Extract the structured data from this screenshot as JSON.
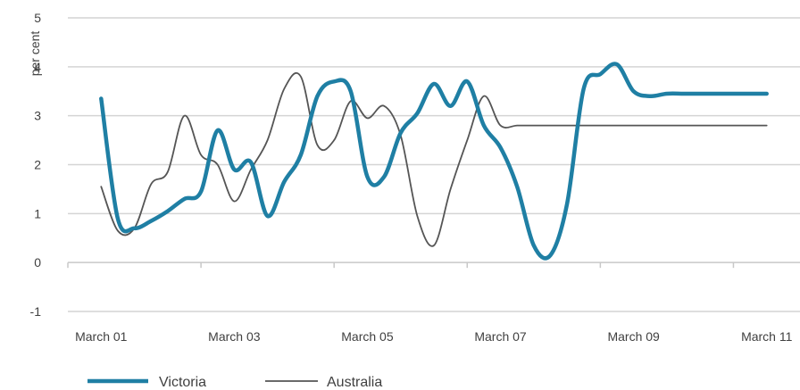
{
  "chart_data": {
    "type": "line",
    "title": "",
    "xlabel": "",
    "ylabel": "per cent",
    "ylim": [
      -1,
      5
    ],
    "yticks": [
      -1,
      0,
      1,
      2,
      3,
      4,
      5
    ],
    "x_tick_labels": [
      "March 01",
      "March 03",
      "March 05",
      "March 07",
      "March 09",
      "March 11"
    ],
    "x_range": [
      2000.5,
      2011.5
    ],
    "grid": "horizontal",
    "legend_position": "bottom-left",
    "series": [
      {
        "name": "Victoria",
        "color": "#1f7fa4",
        "style": "thick",
        "x": [
          2001,
          2001.25,
          2001.5,
          2001.75,
          2002,
          2002.25,
          2002.5,
          2002.75,
          2003,
          2003.25,
          2003.5,
          2003.75,
          2004,
          2004.25,
          2004.5,
          2004.75,
          2005,
          2005.25,
          2005.5,
          2005.75,
          2006,
          2006.25,
          2006.5,
          2006.75,
          2007,
          2007.25,
          2007.5,
          2007.75,
          2008,
          2008.25,
          2008.5,
          2008.75,
          2009,
          2009.25,
          2009.5,
          2009.75,
          2010,
          2010.25,
          2010.5,
          2010.75,
          2011
        ],
        "values": [
          3.35,
          0.9,
          0.7,
          0.85,
          1.05,
          1.3,
          1.45,
          2.7,
          1.9,
          2.05,
          0.95,
          1.65,
          2.2,
          3.4,
          3.7,
          3.5,
          1.75,
          1.75,
          2.65,
          3.05,
          3.65,
          3.2,
          3.7,
          2.8,
          2.35,
          1.55,
          0.35,
          0.15,
          1.2,
          3.55,
          3.85,
          4.05,
          3.5,
          3.4,
          3.45,
          3.45,
          3.45,
          3.45,
          3.45,
          3.45,
          3.45
        ]
      },
      {
        "name": "Australia",
        "color": "#555555",
        "style": "thin",
        "x": [
          2001,
          2001.25,
          2001.5,
          2001.75,
          2002,
          2002.25,
          2002.5,
          2002.75,
          2003,
          2003.25,
          2003.5,
          2003.75,
          2004,
          2004.25,
          2004.5,
          2004.75,
          2005,
          2005.25,
          2005.5,
          2005.75,
          2006,
          2006.25,
          2006.5,
          2006.75,
          2007,
          2007.25,
          2007.5,
          2007.75,
          2008,
          2008.25,
          2008.5,
          2008.75,
          2009,
          2009.25,
          2009.5,
          2009.75,
          2010,
          2010.25,
          2010.5,
          2010.75,
          2011
        ],
        "values": [
          1.55,
          0.65,
          0.7,
          1.6,
          1.85,
          3.0,
          2.2,
          2.0,
          1.25,
          1.9,
          2.5,
          3.55,
          3.8,
          2.4,
          2.5,
          3.3,
          2.95,
          3.2,
          2.6,
          0.95,
          0.35,
          1.5,
          2.5,
          3.4,
          2.8,
          2.8,
          2.8,
          2.8,
          2.8,
          2.8,
          2.8,
          2.8,
          2.8,
          2.8,
          2.8,
          2.8,
          2.8,
          2.8,
          2.8,
          2.8,
          2.8
        ]
      }
    ]
  }
}
